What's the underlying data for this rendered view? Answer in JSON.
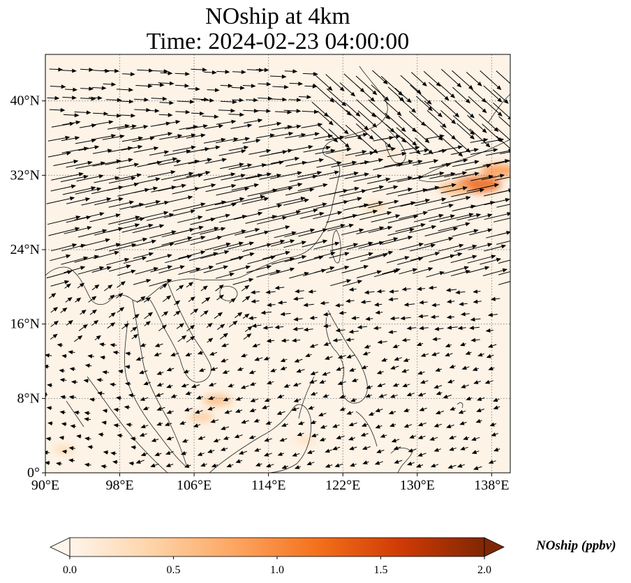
{
  "chart_data": {
    "type": "map-quiver",
    "title": "NOship at 4km",
    "subtitle": "Time: 2024-02-23 04:00:00",
    "variable": "NOship",
    "colorbar": {
      "label": "NOship (ppbv)",
      "range": [
        0.0,
        2.0
      ],
      "ticks": [
        0.0,
        0.5,
        1.0,
        1.5,
        2.0
      ],
      "tick_labels": [
        "0.0",
        "0.5",
        "1.0",
        "1.5",
        "2.0"
      ],
      "extend": "both",
      "colormap_stops": [
        "#fff5eb",
        "#fdd3a7",
        "#fda560",
        "#f3701b",
        "#cf3a05",
        "#7f2704"
      ]
    },
    "lon_range": [
      90,
      140
    ],
    "lat_range": [
      0,
      45
    ],
    "x_ticks": [
      90,
      98,
      106,
      114,
      122,
      130,
      138
    ],
    "x_tick_labels": [
      "90°E",
      "98°E",
      "106°E",
      "114°E",
      "122°E",
      "130°E",
      "138°E"
    ],
    "y_ticks": [
      0,
      8,
      16,
      24,
      32,
      40
    ],
    "y_tick_labels": [
      "0°",
      "8°N",
      "16°N",
      "24°N",
      "32°N",
      "40°N"
    ],
    "gridlines": "dotted",
    "colors": {
      "background_field": "#fdf3e6",
      "arrow": "#000000",
      "coastline": "#222222",
      "gridline": "#888888"
    },
    "concentration_hotspots": [
      {
        "lon": 136.5,
        "lat": 31.0,
        "value": 1.3
      },
      {
        "lon": 134.0,
        "lat": 30.6,
        "value": 0.7
      },
      {
        "lon": 138.8,
        "lat": 32.5,
        "value": 0.9
      },
      {
        "lon": 108.5,
        "lat": 7.8,
        "value": 0.6
      },
      {
        "lon": 106.8,
        "lat": 6.0,
        "value": 0.45
      },
      {
        "lon": 125.5,
        "lat": 28.6,
        "value": 0.35
      },
      {
        "lon": 92.0,
        "lat": 2.5,
        "value": 0.3
      },
      {
        "lon": 118.0,
        "lat": 3.5,
        "value": 0.25
      },
      {
        "lon": 127.0,
        "lat": 34.5,
        "value": 0.2
      },
      {
        "lon": 122.0,
        "lat": 34.0,
        "value": 0.2
      }
    ]
  }
}
